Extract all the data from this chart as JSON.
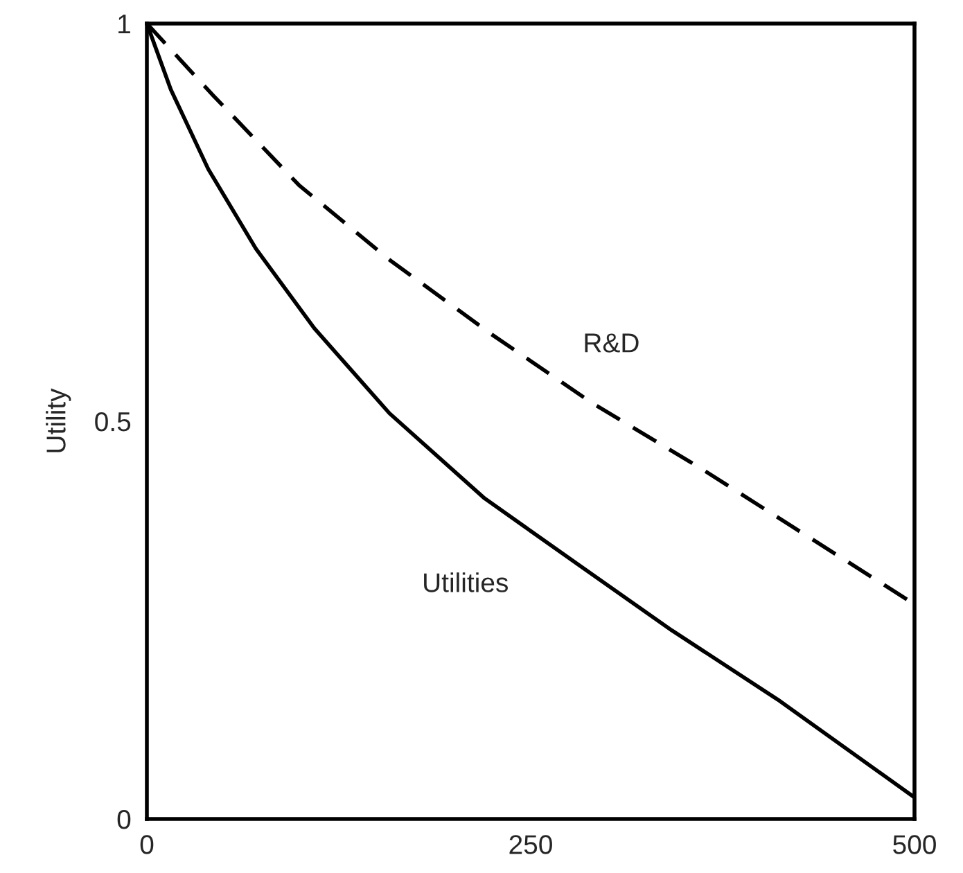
{
  "chart_data": {
    "type": "line",
    "ylabel": "Utility",
    "xlim": [
      0,
      500
    ],
    "ylim": [
      0,
      1
    ],
    "xticks": [
      0,
      250,
      500
    ],
    "yticks": [
      0,
      0.5,
      1
    ],
    "grid": false,
    "legend": false,
    "marker": "none",
    "series": [
      {
        "name": "Utilities",
        "color": "#000000",
        "line_style": "solid",
        "x": [
          0,
          15.6,
          40,
          71,
          109,
          158,
          220,
          283,
          342,
          411,
          500
        ],
        "values": [
          1,
          0.917,
          0.817,
          0.717,
          0.617,
          0.51,
          0.403,
          0.317,
          0.237,
          0.15,
          0.027
        ]
      },
      {
        "name": "R&D",
        "color": "#000000",
        "line_style": "dashed",
        "x": [
          0,
          43,
          99,
          158,
          224,
          290,
          359,
          429,
          500
        ],
        "values": [
          1,
          0.91,
          0.797,
          0.703,
          0.61,
          0.523,
          0.443,
          0.357,
          0.27
        ]
      }
    ]
  }
}
